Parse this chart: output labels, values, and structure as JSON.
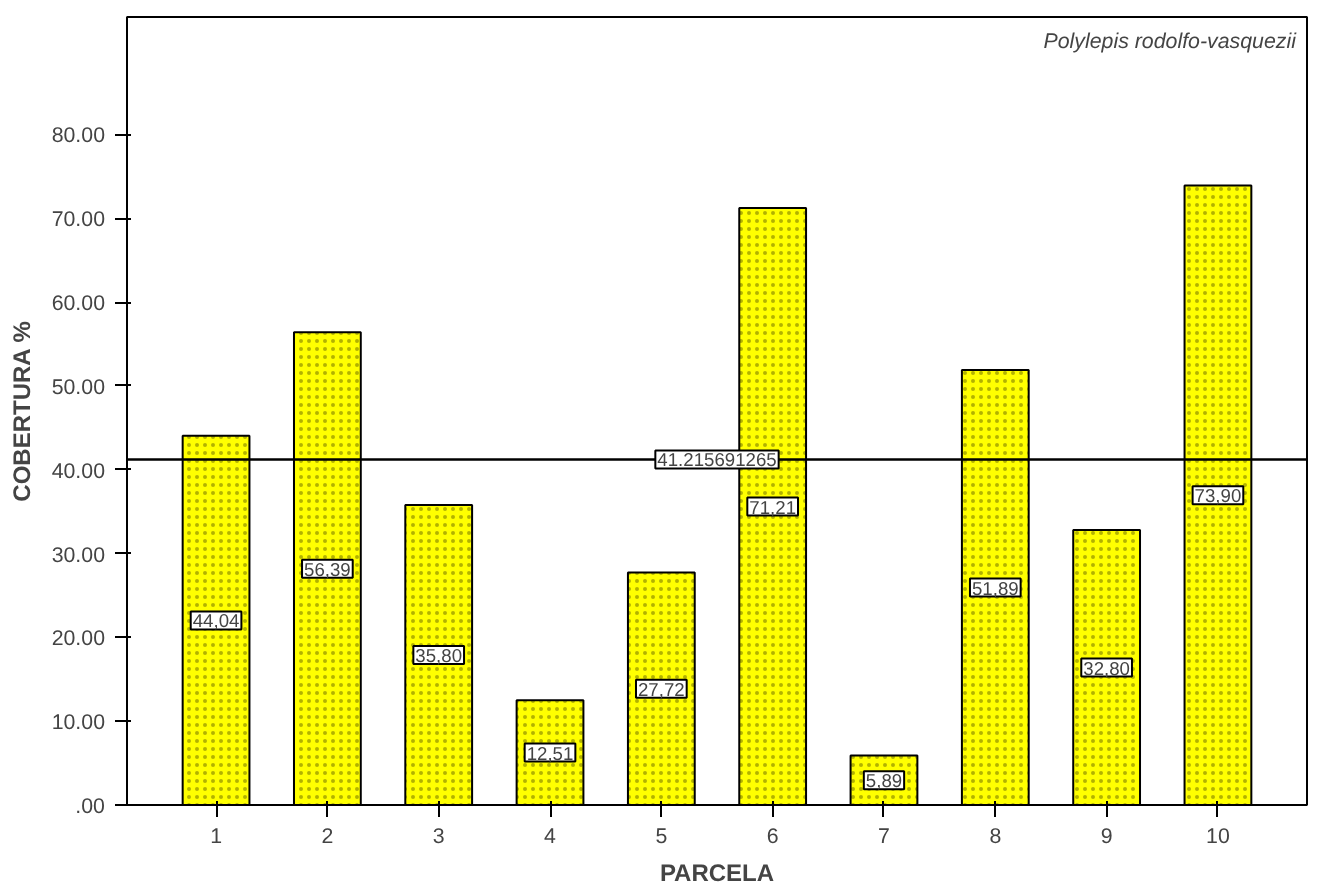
{
  "chart_data": {
    "type": "bar",
    "xlabel": "PARCELA",
    "ylabel": "COBERTURA %",
    "categories": [
      "1",
      "2",
      "3",
      "4",
      "5",
      "6",
      "7",
      "8",
      "9",
      "10"
    ],
    "values": [
      44.04,
      56.39,
      35.8,
      12.51,
      27.72,
      71.21,
      5.89,
      51.89,
      32.8,
      73.9
    ],
    "value_labels": [
      "44,04",
      "56,39",
      "35,80",
      "12,51",
      "27,72",
      "71,21",
      "5,89",
      "51,89",
      "32,80",
      "73,90"
    ],
    "color": "#ffff00",
    "ylim": [
      0,
      94
    ],
    "yticks": [
      {
        "value": 0,
        "label": ".00"
      },
      {
        "value": 10,
        "label": "10.00"
      },
      {
        "value": 20,
        "label": "20.00"
      },
      {
        "value": 30,
        "label": "30.00"
      },
      {
        "value": 40,
        "label": "40.00"
      },
      {
        "value": 50,
        "label": "50.00"
      },
      {
        "value": 60,
        "label": "60.00"
      },
      {
        "value": 70,
        "label": "70.00"
      },
      {
        "value": 80,
        "label": "80.00"
      }
    ],
    "ref_lines": [
      {
        "axis": "y",
        "value": 41.215691265,
        "label": "41.215691265",
        "color": "#000000"
      }
    ],
    "annotations": [
      "Polylepis rodolfo-vasquezii"
    ],
    "grid": false
  }
}
